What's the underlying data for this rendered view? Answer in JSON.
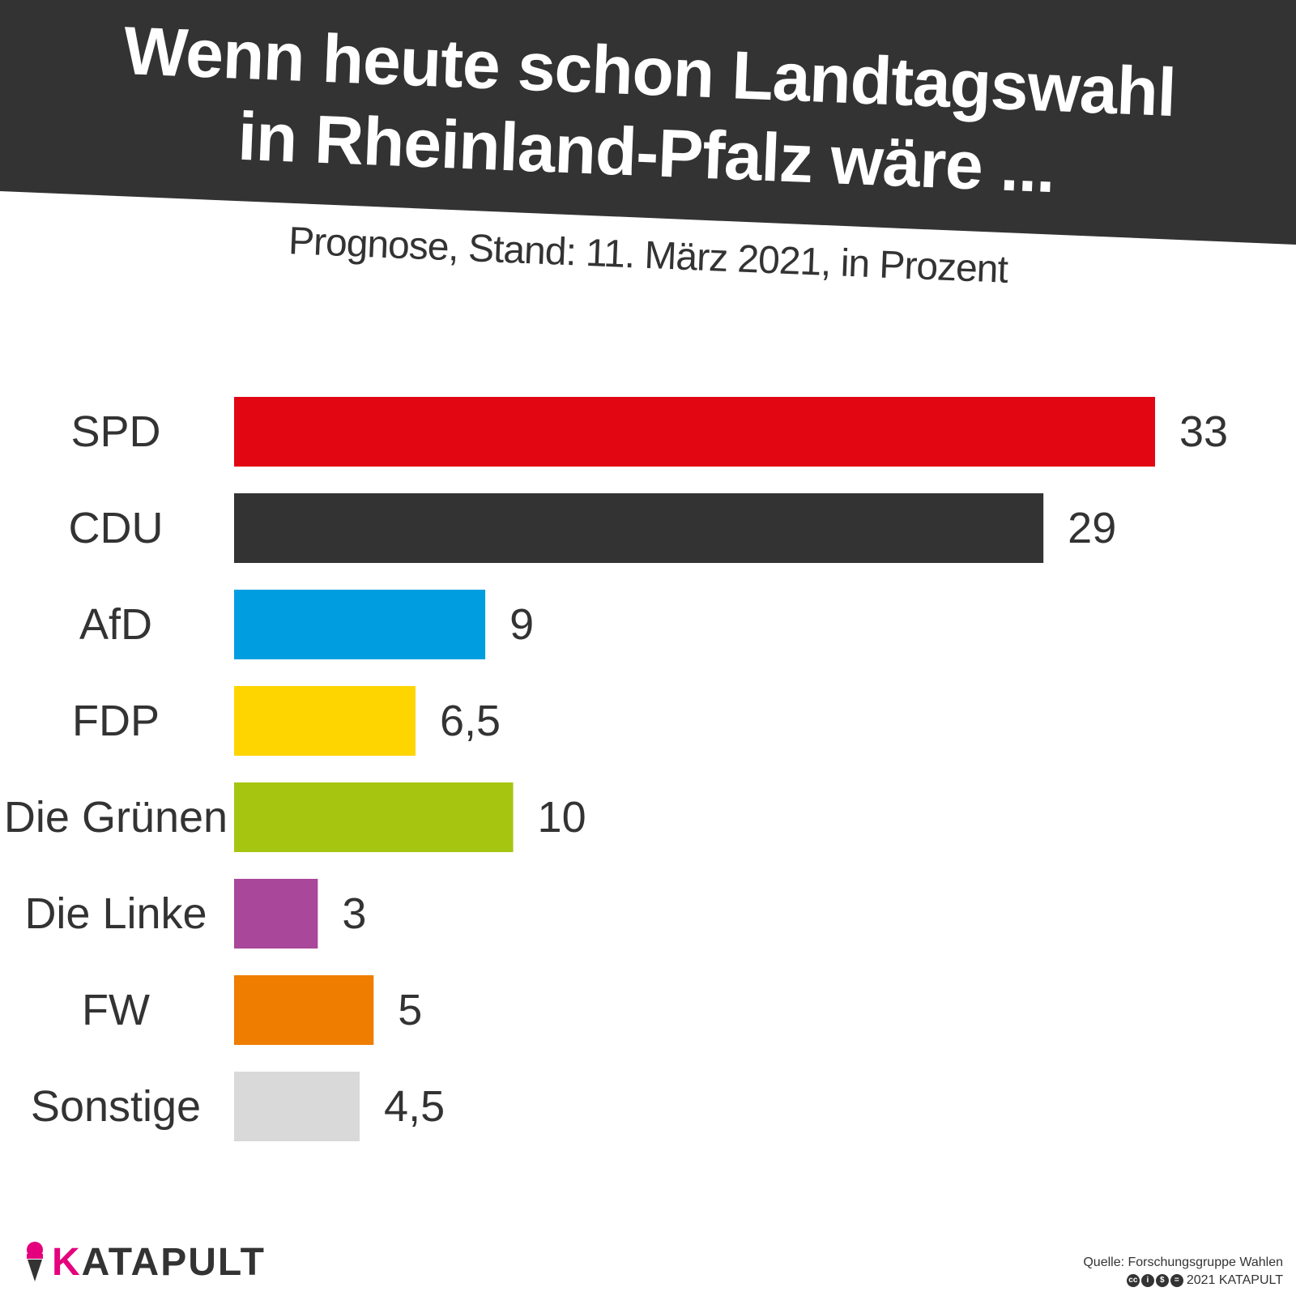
{
  "header": {
    "title_line1": "Wenn heute schon Landtagswahl",
    "title_line2": "in Rheinland-Pfalz wäre ...",
    "subtitle": "Prognose, Stand: 11. März 2021, in Prozent"
  },
  "chart_data": {
    "type": "bar",
    "orientation": "horizontal",
    "title": "Wenn heute schon Landtagswahl in Rheinland-Pfalz wäre ...",
    "subtitle": "Prognose, Stand: 11. März 2021, in Prozent",
    "categories": [
      "SPD",
      "CDU",
      "AfD",
      "FDP",
      "Die Grünen",
      "Die Linke",
      "FW",
      "Sonstige"
    ],
    "values": [
      33,
      29,
      9,
      6.5,
      10,
      3,
      5,
      4.5
    ],
    "value_labels": [
      "33",
      "29",
      "9",
      "6,5",
      "10",
      "3",
      "5",
      "4,5"
    ],
    "colors": [
      "#e20613",
      "#333333",
      "#009ee0",
      "#ffd500",
      "#a6c511",
      "#a9479a",
      "#ef7d00",
      "#d9d9d9"
    ],
    "xlim": [
      0,
      33
    ],
    "grid": false,
    "legend": "none"
  },
  "footer": {
    "logo_k": "K",
    "logo_rest": "ATAPULT",
    "source": "Quelle: Forschungsgruppe Wahlen",
    "copyright": "2021 KATAPULT"
  }
}
